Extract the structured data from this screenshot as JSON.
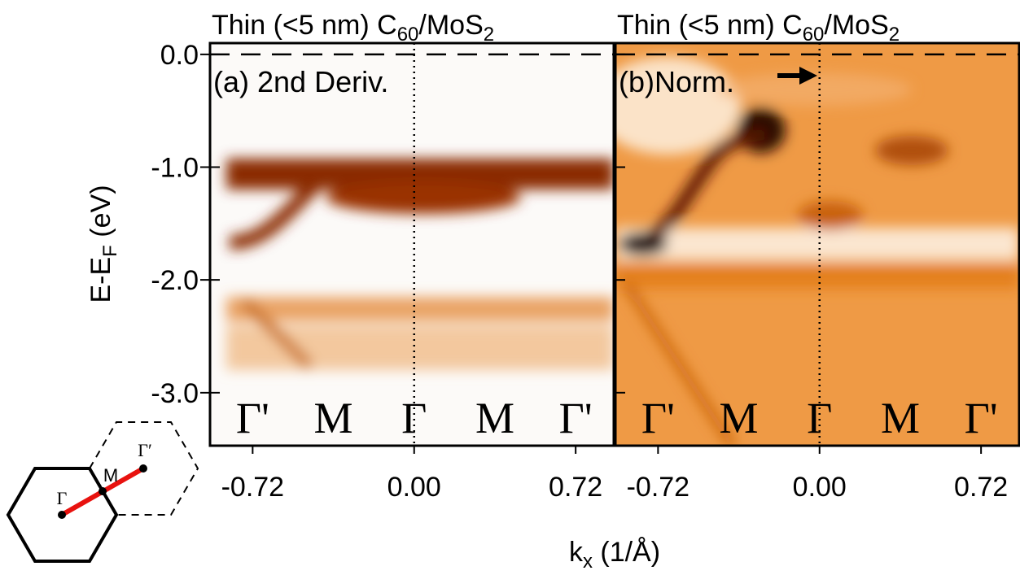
{
  "figure": {
    "ylabel": [
      "E-E",
      "F",
      " (eV)"
    ],
    "xlabel": [
      "k",
      "x",
      " (1/Å)"
    ],
    "inset_labels": [
      "Γ",
      "M",
      "Γ′"
    ]
  },
  "chart_data": [
    {
      "type": "heatmap",
      "title": [
        "Thin (<5 nm) C",
        "60",
        "/MoS",
        "2"
      ],
      "annotation": "(a) 2nd Deriv.",
      "symmetry_points": [
        "Γ'",
        "M",
        "Γ",
        "M",
        "Γ'"
      ],
      "xlim": [
        -0.91,
        0.89
      ],
      "xticks": [
        -0.72,
        {
          "value": 0,
          "label": "0.00"
        },
        0.72
      ],
      "ylim": [
        -3.47,
        0.1
      ],
      "yticks": [
        {
          "value": 0,
          "label": "0.0"
        },
        {
          "value": -1,
          "label": "-1.0"
        },
        {
          "value": -2,
          "label": "-2.0"
        },
        {
          "value": -3,
          "label": "-3.0"
        }
      ]
    },
    {
      "type": "heatmap",
      "title": [
        "Thin (<5 nm) C",
        "60",
        "/MoS",
        "2"
      ],
      "annotation": "(b)Norm.",
      "symmetry_points": [
        "Γ'",
        "M",
        "Γ",
        "M",
        "Γ'"
      ],
      "xlim": [
        -0.91,
        0.89
      ],
      "xticks": [
        -0.72,
        {
          "value": 0,
          "label": "0.00"
        },
        0.72
      ],
      "ylim": [
        -3.47,
        0.1
      ],
      "yticks": [
        {
          "value": 0,
          "label": "0.0"
        },
        {
          "value": -1,
          "label": "-1.0"
        },
        {
          "value": -2,
          "label": "-2.0"
        },
        {
          "value": -3,
          "label": "-3.0"
        }
      ]
    }
  ]
}
